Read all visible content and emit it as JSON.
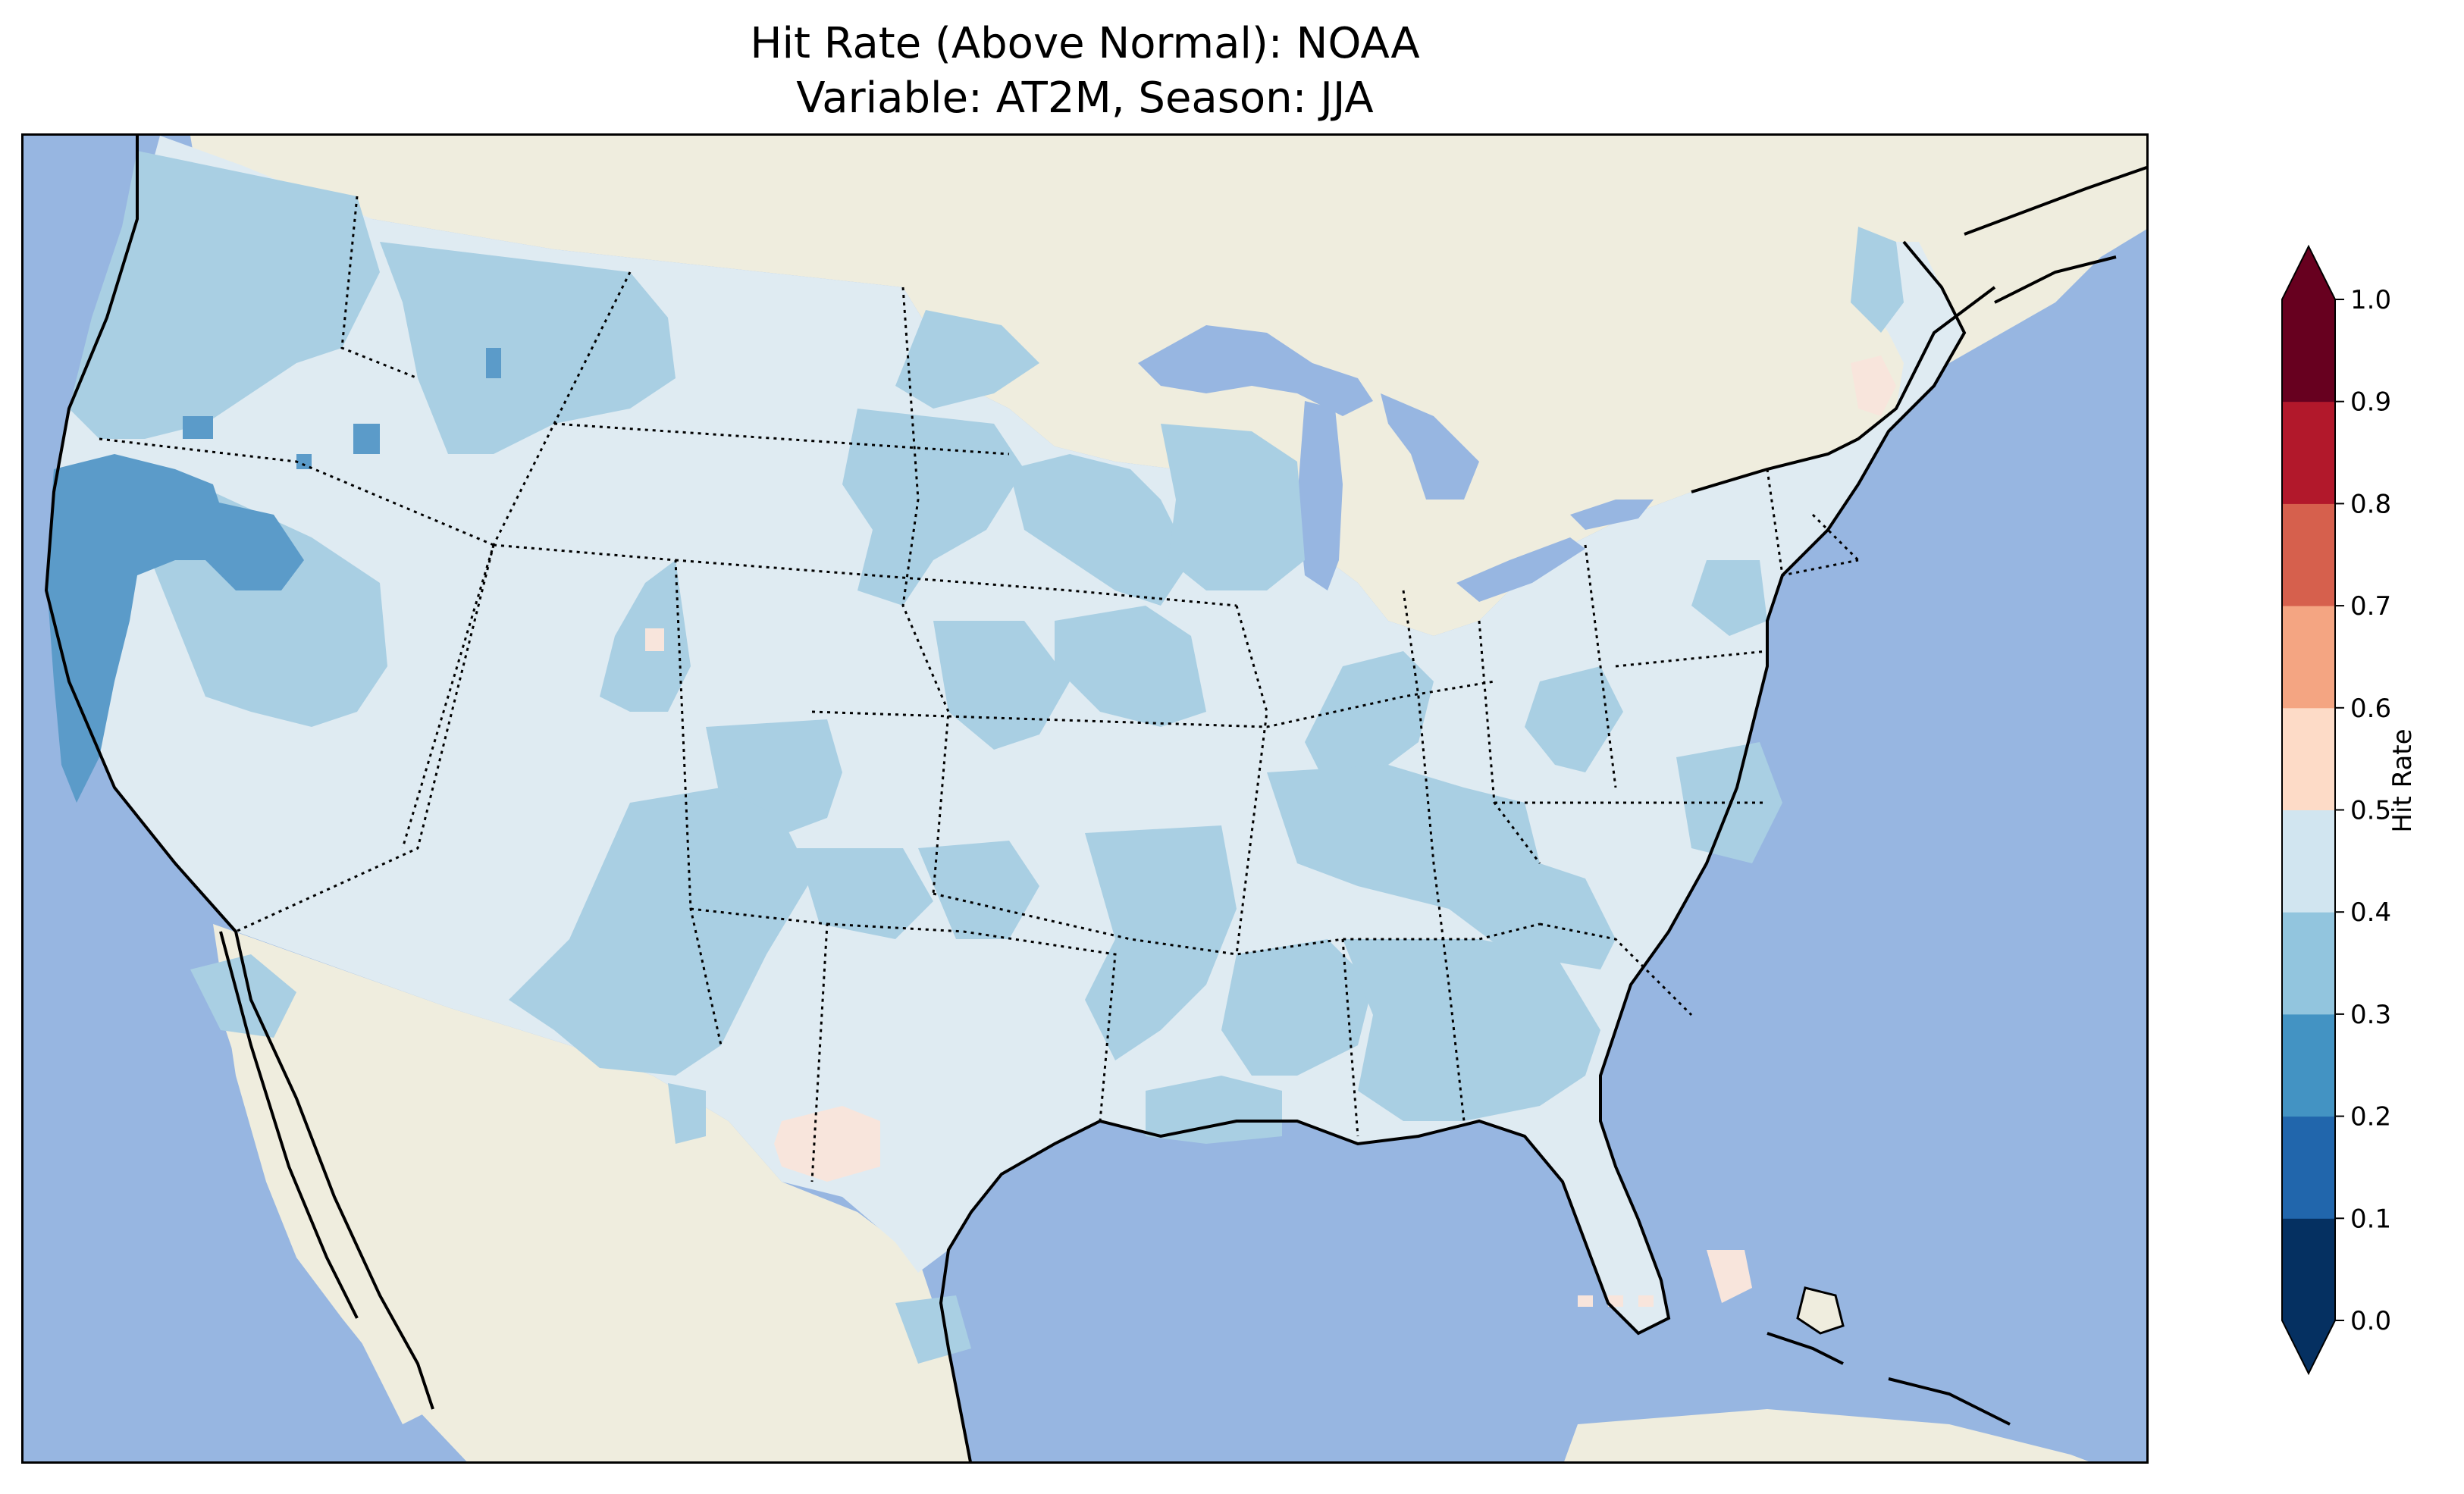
{
  "figure": {
    "title_line1": "Hit Rate (Above Normal): NOAA",
    "title_line2": "Variable: AT2M, Season: JJA"
  },
  "map": {
    "ocean_color": "#97b6e1",
    "land_color": "#efedde",
    "lake_color": "#97b6e1",
    "coastline_color": "#000000",
    "state_border_style": "dotted"
  },
  "colorbar": {
    "label": "Hit Rate",
    "ticks": [
      "0.0",
      "0.1",
      "0.2",
      "0.3",
      "0.4",
      "0.5",
      "0.6",
      "0.7",
      "0.8",
      "0.9",
      "1.0"
    ],
    "colors": [
      "#053061",
      "#2166ac",
      "#4393c3",
      "#92c5de",
      "#d1e5f0",
      "#fddbc7",
      "#f4a582",
      "#d6604d",
      "#b2182b",
      "#67001f"
    ],
    "under_color": "#053061",
    "over_color": "#67001f",
    "extend": "both"
  },
  "legend_classes": {
    "class_0_2_0_3": "#5b9bc9",
    "class_0_3_0_4": "#a9cfe3",
    "class_0_4_0_5": "#dfebf2",
    "class_0_5_0_6": "#f8e5dc"
  }
}
